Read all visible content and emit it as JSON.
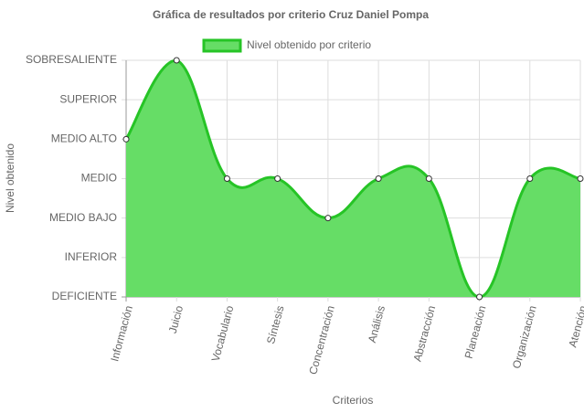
{
  "chart_data": {
    "type": "line",
    "title": "Gráfica de resultados por criterio Cruz Daniel Pompa",
    "x_label": "Criterios",
    "y_label": "Nivel obtenido",
    "categories": [
      "Información",
      "Juicio",
      "Vocabulario",
      "Síntesis",
      "Concentración",
      "Análisis",
      "Abstracción",
      "Planeación",
      "Organización",
      "Atención"
    ],
    "series": [
      {
        "name": "Nivel obtenido por criterio",
        "color": "#26c426",
        "fill": "#66dd66",
        "values": [
          4,
          6,
          3,
          3,
          2,
          3,
          3,
          0,
          3,
          3
        ]
      }
    ],
    "ylim": [
      0,
      6
    ],
    "yticks": [
      {
        "value": 0,
        "label": "DEFICIENTE"
      },
      {
        "value": 1,
        "label": "INFERIOR"
      },
      {
        "value": 2,
        "label": "MEDIO BAJO"
      },
      {
        "value": 3,
        "label": "MEDIO"
      },
      {
        "value": 4,
        "label": "MEDIO ALTO"
      },
      {
        "value": 5,
        "label": "SUPERIOR"
      },
      {
        "value": 6,
        "label": "SOBRESALIENTE"
      }
    ],
    "grid": true,
    "legend": "top"
  }
}
